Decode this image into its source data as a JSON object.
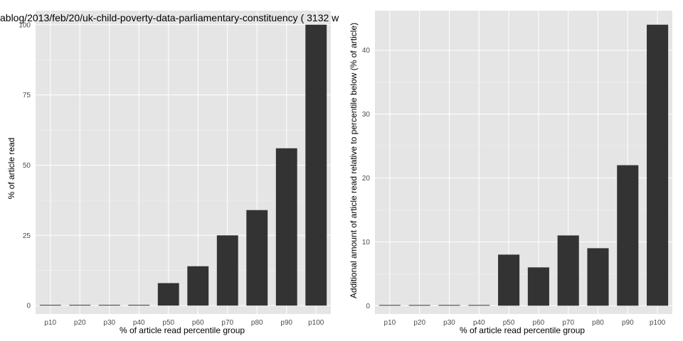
{
  "chart_data": [
    {
      "type": "bar",
      "title": "ablog/2013/feb/20/uk-child-poverty-data-parliamentary-constituency ( 3132 w",
      "xlabel": "% of article read percentile group",
      "ylabel": "% of article read",
      "categories": [
        "p10",
        "p20",
        "p30",
        "p40",
        "p50",
        "p60",
        "p70",
        "p80",
        "p90",
        "p100"
      ],
      "values": [
        0,
        0,
        0,
        0,
        8,
        14,
        25,
        34,
        56,
        100
      ],
      "ylim": [
        -3,
        105
      ],
      "yticks": [
        0,
        25,
        50,
        75,
        100
      ],
      "grid": true,
      "legend": "none"
    },
    {
      "type": "bar",
      "title": "",
      "xlabel": "% of article read percentile group",
      "ylabel": "Additional amount of article read relative to percentile below (% of article)",
      "categories": [
        "p10",
        "p20",
        "p30",
        "p40",
        "p50",
        "p60",
        "p70",
        "p80",
        "p90",
        "p100"
      ],
      "values": [
        0,
        0,
        0,
        0,
        8,
        6,
        11,
        9,
        22,
        44
      ],
      "ylim": [
        -1.3,
        46.2
      ],
      "yticks": [
        0,
        10,
        20,
        30,
        40
      ],
      "grid": true,
      "legend": "none"
    }
  ],
  "colors": {
    "panel": "#e5e5e5",
    "grid_major": "#ffffff",
    "grid_minor": "#f2f2f2",
    "bar": "#333333",
    "tick_text": "#4d4d4d"
  }
}
